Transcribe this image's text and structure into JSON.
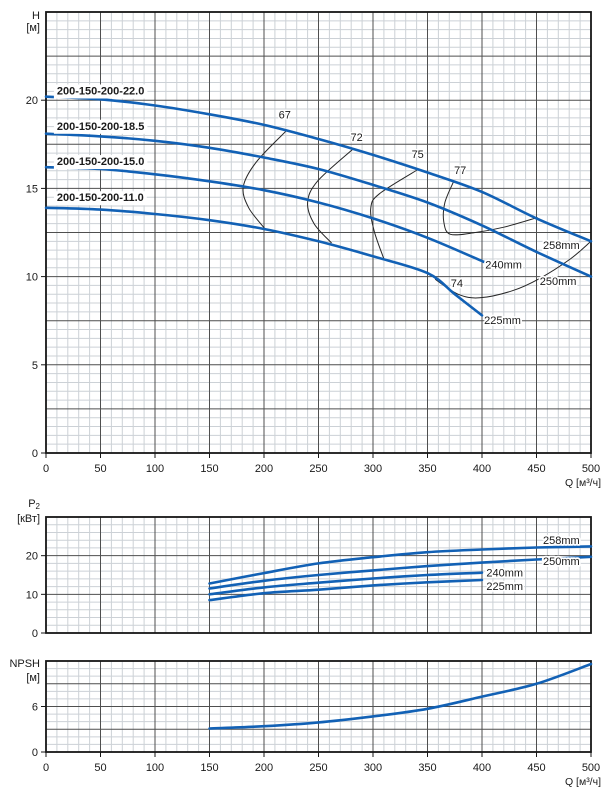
{
  "page": {
    "background": "#ffffff"
  },
  "colors": {
    "curve": "#1261b5",
    "grid_major": "#4f4f4f",
    "grid_minor": "#ccd1d6",
    "border": "#161616",
    "contour": "#262626",
    "text": "#1a1a1a"
  },
  "x_axis": {
    "unit_label": "Q [м³/ч]",
    "ticks": [
      0,
      50,
      100,
      150,
      200,
      250,
      300,
      350,
      400,
      450,
      500
    ]
  },
  "chart_data": [
    {
      "id": "head",
      "type": "line",
      "title": "H",
      "unit": "[м]",
      "xlabel": "Q [м³/ч]",
      "xlim": [
        0,
        500
      ],
      "ylim": [
        0,
        25
      ],
      "x_major": 50,
      "x_minor": 10,
      "y_major": 2.5,
      "y_minor": 0.5,
      "y_ticks": [
        0,
        5,
        10,
        15,
        20
      ],
      "show_x_ticks": true,
      "series": [
        {
          "name": "258mm",
          "model": "200-150-200-22.0",
          "x": [
            0,
            50,
            100,
            150,
            200,
            250,
            300,
            350,
            400,
            450,
            500
          ],
          "y": [
            20.2,
            20.05,
            19.7,
            19.2,
            18.6,
            17.8,
            16.9,
            15.9,
            14.8,
            13.3,
            12.0
          ]
        },
        {
          "name": "250mm",
          "model": "200-150-200-18.5",
          "x": [
            0,
            50,
            100,
            150,
            200,
            250,
            300,
            350,
            400,
            450,
            500
          ],
          "y": [
            18.1,
            17.95,
            17.7,
            17.3,
            16.75,
            16.1,
            15.2,
            14.2,
            12.9,
            11.4,
            10.0
          ]
        },
        {
          "name": "240mm",
          "model": "200-150-200-15.0",
          "x": [
            0,
            50,
            100,
            150,
            200,
            250,
            300,
            350,
            403
          ],
          "y": [
            16.2,
            16.1,
            15.8,
            15.4,
            14.9,
            14.2,
            13.3,
            12.2,
            10.8
          ]
        },
        {
          "name": "225mm",
          "model": "200-150-200-11.0",
          "x": [
            0,
            50,
            100,
            150,
            200,
            250,
            300,
            350,
            375,
            400
          ],
          "y": [
            13.9,
            13.8,
            13.55,
            13.2,
            12.7,
            12.0,
            11.15,
            10.2,
            9.0,
            7.8
          ]
        }
      ],
      "model_labels": [
        {
          "text": "200-150-200-22.0",
          "q": 10,
          "h": 20.55
        },
        {
          "text": "200-150-200-18.5",
          "q": 10,
          "h": 18.55
        },
        {
          "text": "200-150-200-15.0",
          "q": 10,
          "h": 16.55
        },
        {
          "text": "200-150-200-11.0",
          "q": 10,
          "h": 14.5
        }
      ],
      "efficiency_contours": [
        {
          "label": "67",
          "label_q": 219,
          "label_h": 19.2,
          "points": [
            [
              221,
              18.3
            ],
            [
              193,
              16.5
            ],
            [
              181,
              15.1
            ],
            [
              186,
              13.9
            ],
            [
              201,
              12.7
            ]
          ]
        },
        {
          "label": "72",
          "label_q": 285,
          "label_h": 17.9,
          "points": [
            [
              281,
              17.2
            ],
            [
              249,
              15.4
            ],
            [
              240,
              14.2
            ],
            [
              246,
              13.0
            ],
            [
              262,
              11.9
            ]
          ]
        },
        {
          "label": "75",
          "label_q": 341,
          "label_h": 16.95,
          "points": [
            [
              342,
              16.1
            ],
            [
              306,
              14.7
            ],
            [
              298,
              13.9
            ],
            [
              301,
              12.6
            ],
            [
              310,
              11.0
            ]
          ]
        },
        {
          "label": "77",
          "label_q": 380,
          "label_h": 16.05,
          "points": [
            [
              374,
              15.4
            ],
            [
              366,
              14.2
            ],
            [
              365,
              13.1
            ],
            [
              371,
              12.4
            ],
            [
              394,
              12.5
            ],
            [
              420,
              12.8
            ],
            [
              451,
              13.35
            ]
          ]
        },
        {
          "label": "74",
          "label_q": 377,
          "label_h": 9.65,
          "points": [
            [
              357,
              9.85
            ],
            [
              378,
              9.0
            ],
            [
              398,
              8.8
            ],
            [
              428,
              9.2
            ],
            [
              453,
              9.9
            ],
            [
              481,
              11.0
            ],
            [
              500,
              12.0
            ]
          ]
        }
      ],
      "diameter_labels": [
        {
          "text": "258mm",
          "q": 456,
          "h": 11.8
        },
        {
          "text": "250mm",
          "q": 453,
          "h": 9.75
        },
        {
          "text": "240mm",
          "q": 403,
          "h": 10.7
        },
        {
          "text": "225mm",
          "q": 402,
          "h": 7.55
        }
      ]
    },
    {
      "id": "power",
      "type": "line",
      "title": "P₂",
      "unit": "[кВт]",
      "xlabel": "",
      "xlim": [
        0,
        500
      ],
      "ylim": [
        0,
        30
      ],
      "x_major": 50,
      "x_minor": 10,
      "y_major": 10,
      "y_minor": 2,
      "y_ticks": [
        0,
        10,
        20
      ],
      "show_x_ticks": false,
      "series": [
        {
          "name": "258mm",
          "x": [
            150,
            200,
            250,
            300,
            350,
            400,
            450,
            500
          ],
          "y": [
            12.8,
            15.5,
            18.0,
            19.6,
            20.9,
            21.6,
            22.1,
            22.4
          ]
        },
        {
          "name": "250mm",
          "x": [
            150,
            200,
            250,
            300,
            350,
            400,
            450,
            500
          ],
          "y": [
            11.5,
            13.5,
            15.0,
            16.2,
            17.3,
            18.2,
            19.0,
            19.7
          ]
        },
        {
          "name": "240mm",
          "x": [
            150,
            200,
            250,
            300,
            350,
            400
          ],
          "y": [
            10.0,
            11.8,
            13.0,
            14.1,
            15.0,
            15.6
          ]
        },
        {
          "name": "225mm",
          "x": [
            150,
            200,
            250,
            300,
            350,
            400
          ],
          "y": [
            8.5,
            10.3,
            11.2,
            12.3,
            13.1,
            13.7
          ]
        }
      ],
      "model_labels": [],
      "efficiency_contours": [],
      "diameter_labels": [
        {
          "text": "258mm",
          "q": 456,
          "h": 24.0
        },
        {
          "text": "250mm",
          "q": 456,
          "h": 18.6
        },
        {
          "text": "240mm",
          "q": 404,
          "h": 15.6
        },
        {
          "text": "225mm",
          "q": 404,
          "h": 12.2
        }
      ]
    },
    {
      "id": "npsh",
      "type": "line",
      "title": "NPSH",
      "unit": "[м]",
      "xlabel": "Q [м³/ч]",
      "xlim": [
        0,
        500
      ],
      "ylim": [
        0,
        12
      ],
      "x_major": 50,
      "x_minor": 10,
      "y_major": 3,
      "y_minor": 1,
      "y_ticks": [
        0,
        6
      ],
      "show_x_ticks": true,
      "series": [
        {
          "name": "NPSH",
          "x": [
            150,
            200,
            250,
            300,
            350,
            400,
            450,
            500
          ],
          "y": [
            3.1,
            3.4,
            3.9,
            4.7,
            5.7,
            7.3,
            9.0,
            11.6
          ]
        }
      ],
      "model_labels": [],
      "efficiency_contours": [],
      "diameter_labels": []
    }
  ]
}
